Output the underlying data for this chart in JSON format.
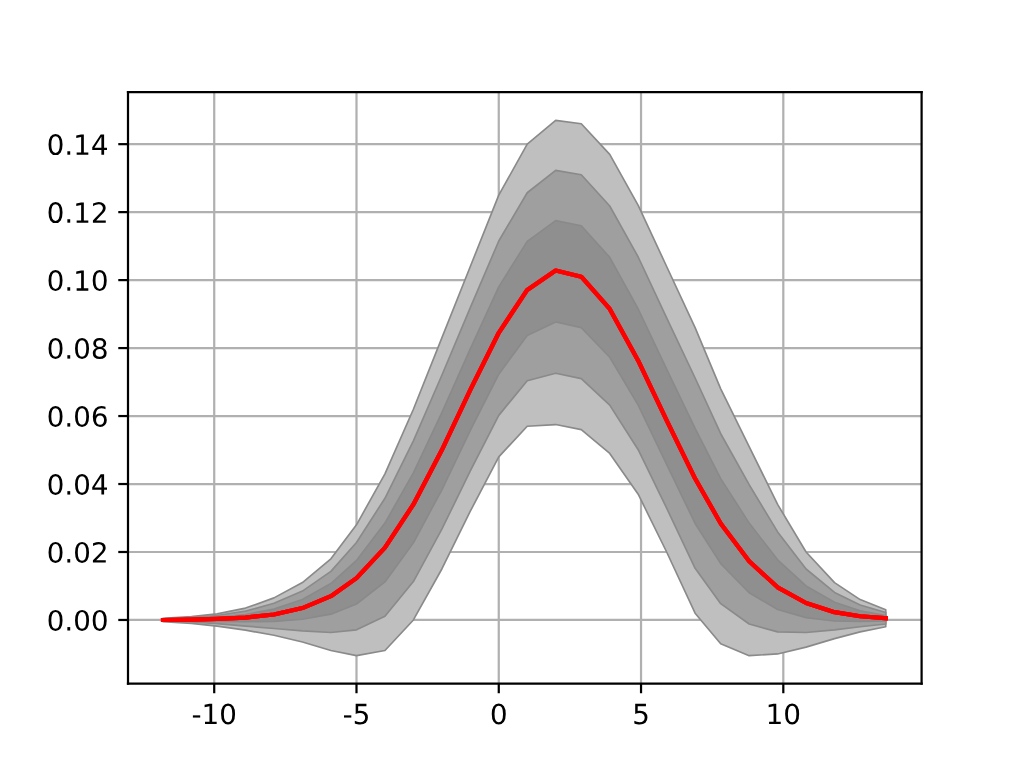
{
  "chart_data": {
    "type": "line",
    "x": [
      -11.8,
      -10.8,
      -9.9,
      -8.9,
      -7.9,
      -6.9,
      -5.9,
      -5.0,
      -4.0,
      -3.0,
      -2.0,
      -1.0,
      0.0,
      1.0,
      2.0,
      2.9,
      3.9,
      4.9,
      5.9,
      6.9,
      7.8,
      8.8,
      9.8,
      10.8,
      11.8,
      12.7,
      13.6
    ],
    "series": [
      {
        "color": "#ff0000",
        "values": [
          0.0,
          0.0001,
          0.0003,
          0.0007,
          0.0016,
          0.0035,
          0.007,
          0.0123,
          0.0213,
          0.034,
          0.05,
          0.0677,
          0.0845,
          0.0971,
          0.1028,
          0.101,
          0.0915,
          0.0763,
          0.0587,
          0.0416,
          0.0284,
          0.0173,
          0.0096,
          0.005,
          0.0023,
          0.0011,
          0.0005
        ],
        "lower": [
          -0.0005,
          -0.001,
          -0.0018,
          -0.003,
          -0.0045,
          -0.0065,
          -0.009,
          -0.0105,
          -0.009,
          0.0,
          0.015,
          0.032,
          0.048,
          0.057,
          0.0575,
          0.056,
          0.049,
          0.037,
          0.02,
          0.002,
          -0.007,
          -0.0105,
          -0.01,
          -0.008,
          -0.0055,
          -0.0035,
          -0.002
        ],
        "upper": [
          0.0005,
          0.001,
          0.0018,
          0.0035,
          0.0065,
          0.011,
          0.018,
          0.028,
          0.043,
          0.062,
          0.083,
          0.104,
          0.125,
          0.14,
          0.147,
          0.146,
          0.137,
          0.122,
          0.104,
          0.086,
          0.068,
          0.051,
          0.034,
          0.02,
          0.011,
          0.006,
          0.003
        ]
      },
      {
        "color": "#ff0000",
        "values": [
          0.0,
          0.0001,
          0.0003,
          0.0007,
          0.0016,
          0.0035,
          0.007,
          0.0123,
          0.0213,
          0.034,
          0.05,
          0.0677,
          0.0845,
          0.0971,
          0.1028,
          0.101,
          0.0915,
          0.0763,
          0.0587,
          0.0416,
          0.0284,
          0.0173,
          0.0096,
          0.005,
          0.0023,
          0.0011,
          0.0005
        ],
        "lower": [
          -0.0003,
          -0.0006,
          -0.0011,
          -0.0018,
          -0.0025,
          -0.0032,
          -0.0037,
          -0.0029,
          0.0011,
          0.0113,
          0.0267,
          0.0439,
          0.0602,
          0.0704,
          0.0726,
          0.071,
          0.0632,
          0.0501,
          0.0329,
          0.0152,
          0.0048,
          -0.0012,
          -0.0035,
          -0.0037,
          -0.0029,
          -0.002,
          -0.0012
        ],
        "upper": [
          0.0003,
          0.0007,
          0.0013,
          0.0026,
          0.0049,
          0.0085,
          0.0143,
          0.0228,
          0.0358,
          0.0527,
          0.072,
          0.0919,
          0.1115,
          0.1257,
          0.1323,
          0.131,
          0.1218,
          0.1068,
          0.0889,
          0.0712,
          0.0548,
          0.0398,
          0.0259,
          0.015,
          0.0081,
          0.0044,
          0.0022
        ]
      },
      {
        "color": "#ff0000",
        "values": [
          0.0,
          0.0001,
          0.0003,
          0.0007,
          0.0016,
          0.0035,
          0.007,
          0.0123,
          0.0213,
          0.034,
          0.05,
          0.0677,
          0.0845,
          0.0971,
          0.1028,
          0.101,
          0.0915,
          0.0763,
          0.0587,
          0.0416,
          0.0284,
          0.0173,
          0.0096,
          0.005,
          0.0023,
          0.0011,
          0.0005
        ],
        "lower": [
          -0.0002,
          -0.0003,
          -0.0004,
          -0.0005,
          -0.0004,
          0.0002,
          0.0017,
          0.0047,
          0.0112,
          0.0227,
          0.0383,
          0.0558,
          0.0723,
          0.0837,
          0.0877,
          0.086,
          0.0773,
          0.0632,
          0.0458,
          0.0284,
          0.0166,
          0.008,
          0.0031,
          0.0007,
          -0.0003,
          -0.0004,
          -0.0003
        ],
        "upper": [
          0.0002,
          0.0004,
          0.0008,
          0.0016,
          0.0032,
          0.006,
          0.0107,
          0.0175,
          0.0285,
          0.0433,
          0.061,
          0.0798,
          0.098,
          0.1114,
          0.1175,
          0.116,
          0.1067,
          0.0915,
          0.0738,
          0.0564,
          0.0416,
          0.0285,
          0.0177,
          0.01,
          0.0052,
          0.0027,
          0.0013
        ]
      }
    ],
    "xlim": [
      -13.03,
      14.86
    ],
    "ylim": [
      -0.0187,
      0.1553
    ],
    "xticks": [
      -10,
      -5,
      0,
      5,
      10
    ],
    "yticks": [
      {
        "value": 0,
        "label": "0.00"
      },
      {
        "value": 0.02,
        "label": "0.02"
      },
      {
        "value": 0.04,
        "label": "0.04"
      },
      {
        "value": 0.06,
        "label": "0.06"
      },
      {
        "value": 0.08,
        "label": "0.08"
      },
      {
        "value": 0.1,
        "label": "0.10"
      },
      {
        "value": 0.12,
        "label": "0.12"
      },
      {
        "value": 0.14,
        "label": "0.14"
      }
    ],
    "grid": true,
    "line_style": "solid",
    "marker": "none"
  }
}
